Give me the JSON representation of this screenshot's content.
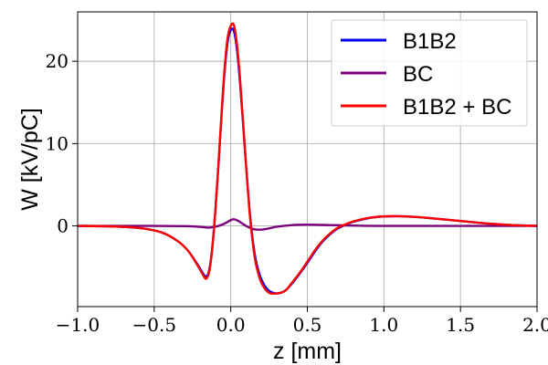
{
  "chart_data": {
    "type": "line",
    "title": "",
    "xlabel": "z [mm]",
    "ylabel": "W [kV/pC]",
    "xlim": [
      -1.0,
      2.0
    ],
    "ylim": [
      -9.8,
      26.0
    ],
    "grid": true,
    "legend_position": "top-right",
    "x_ticks": [
      {
        "value": -1.0,
        "label": "−1.0"
      },
      {
        "value": -0.5,
        "label": "−0.5"
      },
      {
        "value": 0.0,
        "label": "0.0"
      },
      {
        "value": 0.5,
        "label": "0.5"
      },
      {
        "value": 1.0,
        "label": "1.0"
      },
      {
        "value": 1.5,
        "label": "1.5"
      },
      {
        "value": 2.0,
        "label": "2.0"
      }
    ],
    "y_ticks": [
      {
        "value": 0,
        "label": "0"
      },
      {
        "value": 10,
        "label": "10"
      },
      {
        "value": 20,
        "label": "20"
      }
    ],
    "series": [
      {
        "name": "B1B2",
        "color": "#0000ee",
        "x": [
          -1.0,
          -0.8,
          -0.6,
          -0.45,
          -0.35,
          -0.28,
          -0.22,
          -0.18,
          -0.16,
          -0.14,
          -0.12,
          -0.1,
          -0.08,
          -0.06,
          -0.04,
          -0.02,
          0.0,
          0.02,
          0.04,
          0.06,
          0.08,
          0.1,
          0.12,
          0.14,
          0.16,
          0.18,
          0.2,
          0.23,
          0.26,
          0.3,
          0.33,
          0.36,
          0.4,
          0.45,
          0.5,
          0.55,
          0.6,
          0.65,
          0.7,
          0.75,
          0.8,
          0.9,
          1.0,
          1.1,
          1.2,
          1.3,
          1.4,
          1.5,
          1.6,
          1.7,
          1.8,
          1.9,
          2.0
        ],
        "y": [
          0.0,
          -0.05,
          -0.25,
          -0.8,
          -1.8,
          -3.0,
          -4.6,
          -5.8,
          -6.2,
          -5.3,
          -2.5,
          2.0,
          7.5,
          13.5,
          18.8,
          22.4,
          23.8,
          23.7,
          21.5,
          17.5,
          12.5,
          7.3,
          2.5,
          -1.2,
          -3.8,
          -5.4,
          -6.5,
          -7.5,
          -8.0,
          -8.2,
          -8.1,
          -7.8,
          -7.0,
          -5.8,
          -4.5,
          -3.1,
          -1.9,
          -1.0,
          -0.3,
          0.15,
          0.5,
          0.95,
          1.15,
          1.18,
          1.1,
          0.95,
          0.78,
          0.6,
          0.42,
          0.26,
          0.14,
          0.06,
          0.0
        ]
      },
      {
        "name": "BC",
        "color": "#7b007b",
        "x": [
          -1.0,
          -0.5,
          -0.25,
          -0.15,
          -0.1,
          -0.05,
          0.0,
          0.02,
          0.05,
          0.1,
          0.15,
          0.2,
          0.25,
          0.3,
          0.4,
          0.5,
          0.6,
          0.7,
          0.8,
          1.0,
          1.5,
          2.0
        ],
        "y": [
          0.0,
          0.0,
          -0.05,
          -0.2,
          -0.1,
          0.2,
          0.7,
          0.8,
          0.6,
          0.0,
          -0.4,
          -0.45,
          -0.3,
          -0.1,
          0.1,
          0.15,
          0.12,
          0.08,
          0.04,
          0.0,
          0.0,
          0.0
        ]
      },
      {
        "name": "B1B2 + BC",
        "color": "#ff0000",
        "x": [
          -1.0,
          -0.8,
          -0.6,
          -0.45,
          -0.35,
          -0.28,
          -0.22,
          -0.18,
          -0.16,
          -0.14,
          -0.12,
          -0.1,
          -0.08,
          -0.06,
          -0.04,
          -0.02,
          0.0,
          0.02,
          0.04,
          0.06,
          0.08,
          0.1,
          0.12,
          0.14,
          0.16,
          0.18,
          0.2,
          0.23,
          0.26,
          0.3,
          0.33,
          0.36,
          0.4,
          0.45,
          0.5,
          0.55,
          0.6,
          0.65,
          0.7,
          0.75,
          0.8,
          0.9,
          1.0,
          1.1,
          1.2,
          1.3,
          1.4,
          1.5,
          1.6,
          1.7,
          1.8,
          1.9,
          2.0
        ],
        "y": [
          0.0,
          -0.05,
          -0.25,
          -0.8,
          -1.8,
          -3.0,
          -4.7,
          -6.0,
          -6.4,
          -5.5,
          -2.6,
          2.0,
          7.6,
          13.7,
          19.2,
          22.9,
          24.3,
          24.4,
          22.1,
          18.0,
          12.7,
          7.3,
          2.3,
          -1.5,
          -4.2,
          -5.8,
          -6.9,
          -7.8,
          -8.2,
          -8.2,
          -8.1,
          -7.8,
          -6.9,
          -5.7,
          -4.35,
          -2.95,
          -1.78,
          -0.9,
          -0.22,
          0.2,
          0.54,
          0.97,
          1.16,
          1.18,
          1.1,
          0.95,
          0.78,
          0.6,
          0.42,
          0.26,
          0.14,
          0.06,
          0.0
        ]
      }
    ]
  }
}
